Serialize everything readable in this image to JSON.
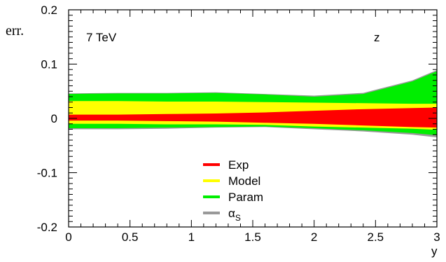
{
  "chart_data": {
    "type": "area",
    "title": "",
    "xlabel": "y",
    "ylabel": "err.",
    "xlim": [
      0,
      3
    ],
    "ylim": [
      -0.2,
      0.2
    ],
    "xticks": [
      "0",
      "0.5",
      "1",
      "1.5",
      "2",
      "2.5",
      "3"
    ],
    "yticks": [
      "0.2",
      "0.1",
      "0",
      "-0.1",
      "-0.2"
    ],
    "annotations": {
      "energy": "7 TeV",
      "variable": "z"
    },
    "legend_position": "bottom-center",
    "grid": false,
    "x": [
      0,
      0.4,
      0.8,
      1.2,
      1.6,
      2.0,
      2.4,
      2.8,
      3.0
    ],
    "series": [
      {
        "name": "αS",
        "legend_main": "α",
        "legend_sub": "S",
        "color": "#999999",
        "upper": [
          0.046,
          0.047,
          0.047,
          0.048,
          0.045,
          0.042,
          0.047,
          0.07,
          0.089
        ],
        "lower": [
          -0.02,
          -0.02,
          -0.019,
          -0.017,
          -0.016,
          -0.02,
          -0.024,
          -0.03,
          -0.035
        ]
      },
      {
        "name": "Param",
        "color": "#00ee00",
        "upper": [
          0.045,
          0.046,
          0.046,
          0.047,
          0.044,
          0.04,
          0.045,
          0.068,
          0.087
        ],
        "lower": [
          -0.018,
          -0.018,
          -0.017,
          -0.016,
          -0.015,
          -0.018,
          -0.022,
          -0.027,
          -0.031
        ]
      },
      {
        "name": "Model",
        "color": "#ffff00",
        "upper": [
          0.032,
          0.032,
          0.031,
          0.031,
          0.03,
          0.029,
          0.028,
          0.027,
          0.027
        ],
        "lower": [
          -0.01,
          -0.01,
          -0.011,
          -0.011,
          -0.012,
          -0.015,
          -0.017,
          -0.019,
          -0.021
        ]
      },
      {
        "name": "Exp",
        "color": "#ff0000",
        "upper": [
          0.007,
          0.007,
          0.008,
          0.009,
          0.011,
          0.014,
          0.017,
          0.019,
          0.02
        ],
        "lower": [
          -0.004,
          -0.004,
          -0.005,
          -0.006,
          -0.008,
          -0.01,
          -0.013,
          -0.016,
          -0.017
        ]
      }
    ],
    "legend_order": [
      "Exp",
      "Model",
      "Param",
      "αS"
    ]
  }
}
